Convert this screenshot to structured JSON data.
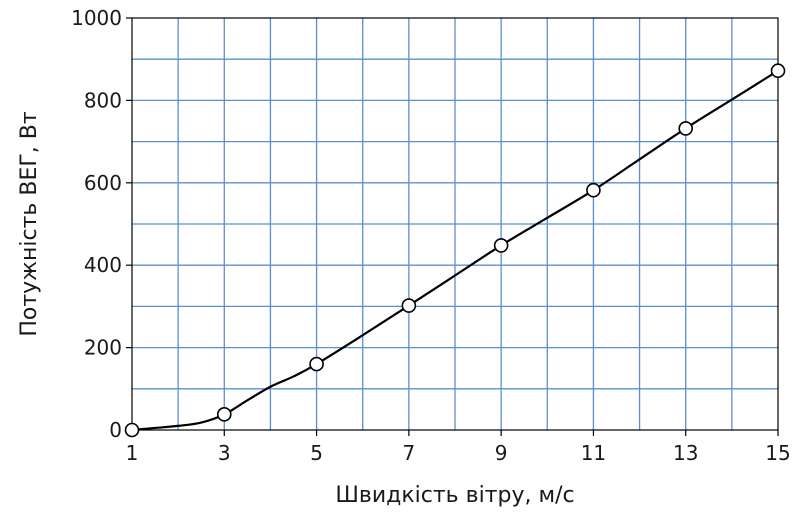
{
  "chart_data": {
    "type": "line",
    "title": "",
    "xlabel": "Швидкість вітру, м/с",
    "ylabel": "Потужність ВЕГ, Вт",
    "xlim": [
      1,
      15
    ],
    "ylim": [
      0,
      1000
    ],
    "x_ticks": [
      1,
      3,
      5,
      7,
      9,
      11,
      13,
      15
    ],
    "y_ticks": [
      0,
      200,
      400,
      600,
      800,
      1000
    ],
    "x_minor_grid": [
      2,
      4,
      6,
      8,
      10,
      12,
      14
    ],
    "y_minor_grid": [
      100,
      300,
      500,
      700,
      900
    ],
    "grid": true,
    "grid_color": "#5b8fd0",
    "line_color": "#000000",
    "marker": "open-circle",
    "series": [
      {
        "x": [
          1,
          3,
          5,
          7,
          9,
          11,
          13,
          15
        ],
        "y": [
          0,
          38,
          160,
          302,
          448,
          582,
          732,
          872
        ],
        "curve_x": [
          1,
          1.5,
          2,
          2.5,
          3,
          3.5,
          4,
          4.5,
          5,
          6,
          7,
          8,
          9,
          10,
          11,
          12,
          13,
          14,
          15
        ],
        "curve_y": [
          0,
          5,
          10,
          18,
          38,
          72,
          105,
          130,
          160,
          230,
          302,
          375,
          448,
          515,
          582,
          657,
          732,
          802,
          872
        ]
      }
    ]
  }
}
